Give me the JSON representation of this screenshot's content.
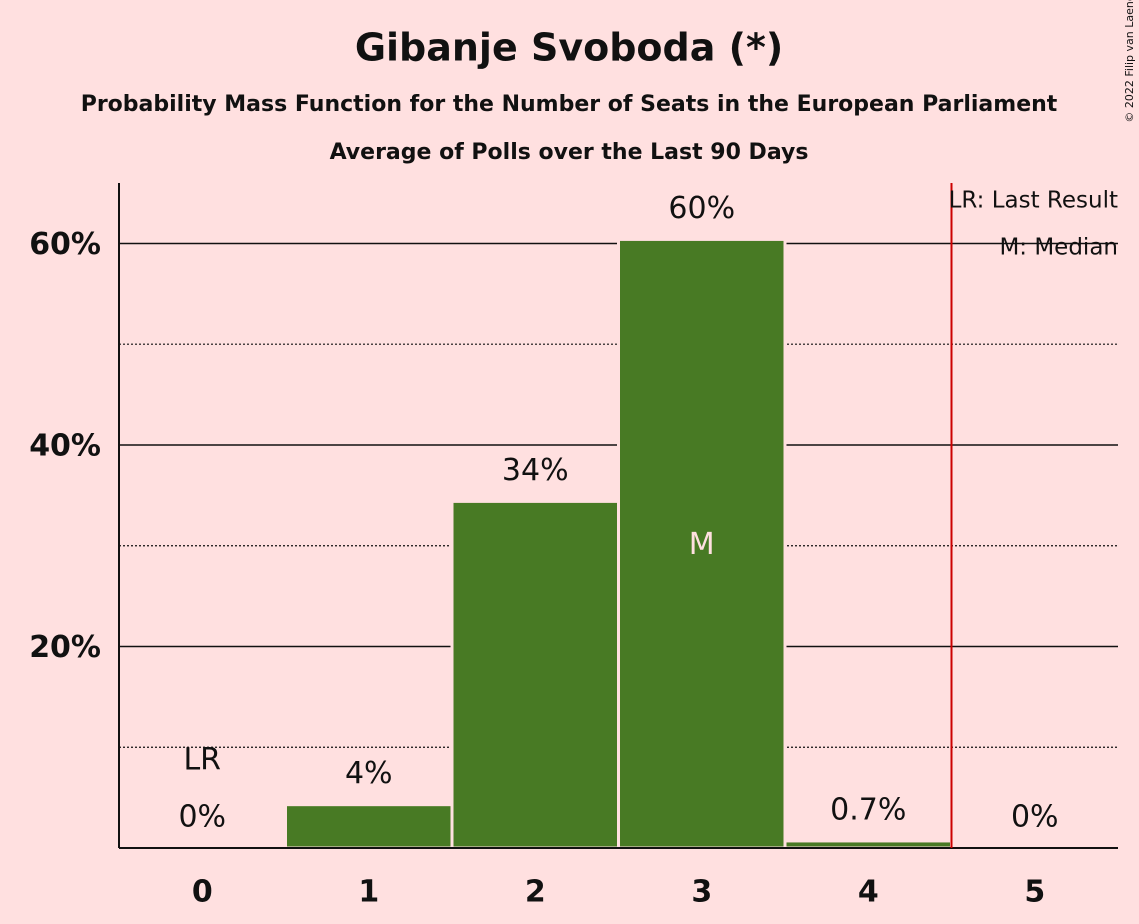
{
  "chart_data": {
    "type": "bar",
    "title": "Gibanje Svoboda (*)",
    "subtitle": "Probability Mass Function for the Number of Seats in the European Parliament",
    "subtitle2": "Average of Polls over the Last 90 Days",
    "copyright": "© 2022 Filip van Laenen",
    "categories": [
      "0",
      "1",
      "2",
      "3",
      "4",
      "5"
    ],
    "values": [
      0,
      4.3,
      34.4,
      60.4,
      0.7,
      0
    ],
    "value_labels": [
      "0%",
      "4%",
      "34%",
      "60%",
      "0.7%",
      "0%"
    ],
    "color": "#487a24",
    "ylim": [
      0,
      66
    ],
    "yticks": [
      {
        "value": 20,
        "label": "20%"
      },
      {
        "value": 40,
        "label": "40%"
      },
      {
        "value": 60,
        "label": "60%"
      }
    ],
    "minor_gridlines": [
      10,
      30,
      50
    ],
    "grid": true,
    "last_result_x": 4.5,
    "last_result_line_color": "#cc0000",
    "last_result_label": "LR",
    "last_result_category": 0,
    "median_label": "M",
    "median_category": 3,
    "legend": [
      "LR: Last Result",
      "M: Median"
    ],
    "legend_position": "top-right"
  }
}
